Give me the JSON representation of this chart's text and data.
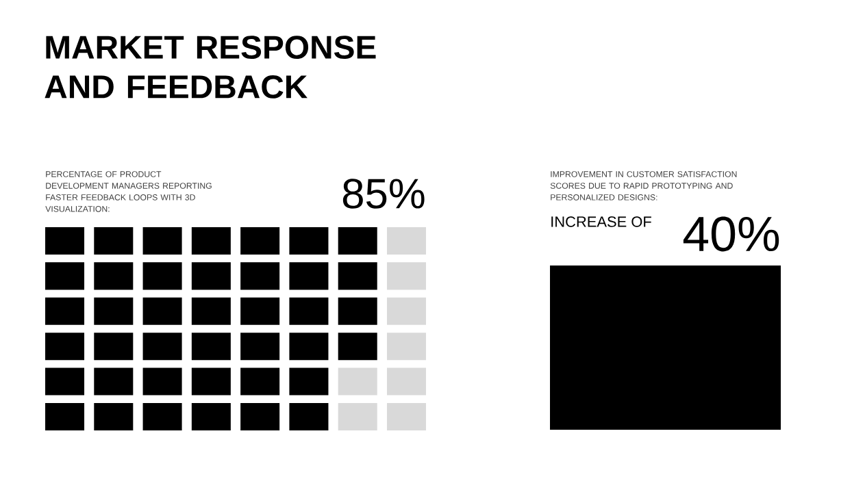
{
  "chart_data": [
    {
      "type": "other",
      "title": "MARKET RESPONSE AND FEEDBACK",
      "subtitle": "PERCENTAGE OF PRODUCT DEVELOPMENT MANAGERS REPORTING FASTER FEEDBACK LOOPS WITH 3D VISUALIZATION:",
      "values": [
        85
      ],
      "value_labels": [
        "85%"
      ],
      "color": "#000000"
    },
    {
      "type": "other",
      "subtitle": "IMPROVEMENT IN CUSTOMER SATISFACTION SCORES DUE TO RAPID PROTOTYPING AND PERSONALIZED DESIGNS:",
      "annotations": [
        "INCREASE OF"
      ],
      "values": [
        40
      ],
      "value_labels": [
        "40%"
      ],
      "color": "#000000"
    }
  ]
}
